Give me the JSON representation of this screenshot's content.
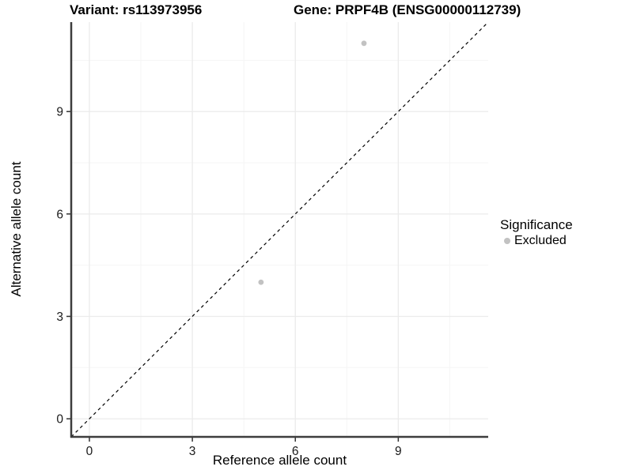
{
  "chart_data": {
    "type": "scatter",
    "titles": {
      "left": "Variant: rs113973956",
      "right": "Gene: PRPF4B (ENSG00000112739)"
    },
    "xlabel": "Reference allele count",
    "ylabel": "Alternative allele count",
    "xlim": [
      -0.53,
      11.62
    ],
    "ylim": [
      -0.53,
      11.62
    ],
    "x_ticks": [
      0,
      3,
      6,
      9
    ],
    "y_ticks": [
      0,
      3,
      6,
      9
    ],
    "x_minor_ticks": [
      1.5,
      4.5,
      7.5,
      10.5
    ],
    "y_minor_ticks": [
      1.5,
      4.5,
      7.5,
      10.5
    ],
    "grid": "major+minor",
    "identity_line": {
      "style": "dashed",
      "color": "#000000"
    },
    "series": [
      {
        "name": "Excluded",
        "color": "#c2c2c2",
        "marker": "circle",
        "points": [
          [
            8,
            11
          ],
          [
            5,
            4
          ]
        ]
      }
    ],
    "legend": {
      "title": "Significance",
      "position": "right",
      "items": [
        {
          "label": "Excluded",
          "color": "#c2c2c2"
        }
      ]
    },
    "colors": {
      "grid_major": "#ebebeb",
      "grid_minor": "#f5f5f5",
      "axis_line": "#3d3d3d",
      "tick_mark": "#333333",
      "tick_label": "#1a1a1a",
      "point_fill": "#c2c2c2"
    }
  }
}
